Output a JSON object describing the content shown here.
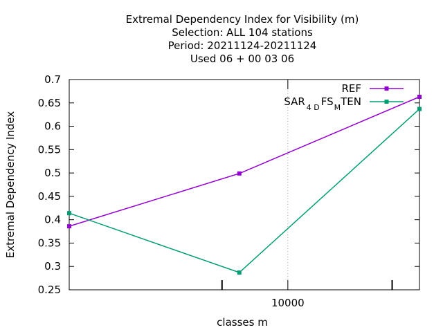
{
  "chart_data": {
    "type": "line",
    "title_lines": [
      "Extremal Dependency Index  for Visibility (m)",
      "Selection: ALL    104 stations",
      "Period: 20211124-20211124",
      "Used  06 + 00 03 06"
    ],
    "xlabel": "classes m",
    "ylabel": "Extremal Dependency Index",
    "x_scale": "log",
    "xlim": [
      1000,
      40000
    ],
    "ylim": [
      0.25,
      0.7
    ],
    "y_ticks": [
      "0.25",
      "0.3",
      "0.35",
      "0.4",
      "0.45",
      "0.5",
      "0.55",
      "0.6",
      "0.65",
      "0.7"
    ],
    "x_major_ticks": [
      {
        "value": 10000,
        "label": "10000"
      }
    ],
    "x_minor_ticks": [
      5000,
      30000
    ],
    "grid": "dotted vertical at x=10000, dotted horizontal at y=0.7",
    "legend_position": "top-right",
    "series": [
      {
        "name": "REF",
        "color": "#9400d3",
        "x": [
          1000,
          6000,
          40000
        ],
        "y": [
          0.386,
          0.499,
          0.663
        ]
      },
      {
        "name_parts": {
          "a": "SAR",
          "b": "4 D",
          "c": "FS",
          "d": "M",
          "e": "TEN"
        },
        "color": "#009e73",
        "x": [
          1000,
          6000,
          40000
        ],
        "y": [
          0.414,
          0.287,
          0.637
        ]
      }
    ]
  }
}
